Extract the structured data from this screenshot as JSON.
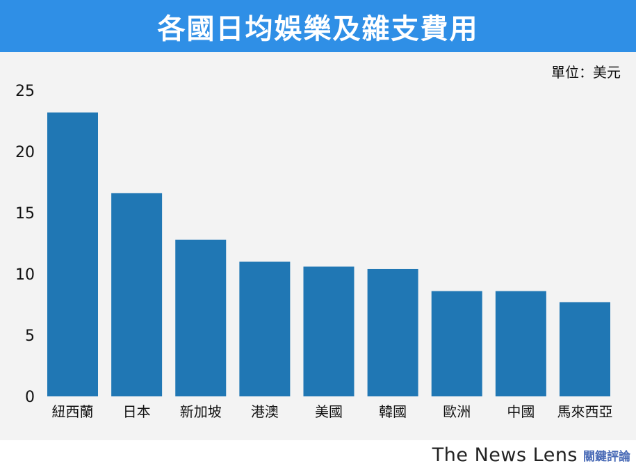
{
  "header": {
    "title": "各國日均娛樂及雜支費用"
  },
  "unit_label": "單位：美元",
  "brand": {
    "name_en": "The News Lens",
    "name_zh": "關鍵評論"
  },
  "colors": {
    "header_bg": "#2f8fe6",
    "bar": "#2077b4",
    "panel_bg": "#f3f3f3"
  },
  "chart_data": {
    "type": "bar",
    "title": "各國日均娛樂及雜支費用",
    "xlabel": "",
    "ylabel": "",
    "unit": "單位：美元",
    "categories": [
      "紐西蘭",
      "日本",
      "新加坡",
      "港澳",
      "美國",
      "韓國",
      "歐洲",
      "中國",
      "馬來西亞"
    ],
    "values": [
      23.2,
      16.6,
      12.8,
      11.0,
      10.6,
      10.4,
      8.6,
      8.6,
      7.7
    ],
    "ylim": [
      0,
      25
    ],
    "yticks": [
      0,
      5,
      10,
      15,
      20,
      25
    ],
    "grid": false,
    "legend": "none"
  }
}
